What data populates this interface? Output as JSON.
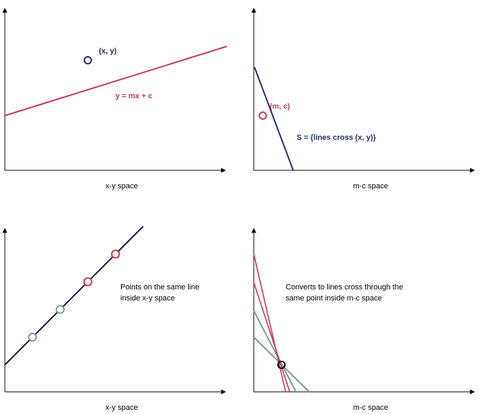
{
  "colors": {
    "axis": "#000000",
    "red": "#c8374f",
    "navy": "#1f2d5c",
    "dark_navy": "#14163a",
    "green": "#7a9a8f",
    "black": "#000000"
  },
  "panels": {
    "top_left": {
      "caption": "x-y space",
      "point_label": "(x, y)",
      "line_label": "y = mx + c"
    },
    "top_right": {
      "caption": "m-c space",
      "point_label": "(m, c)",
      "line_label": "S = {lines cross (x, y)}"
    },
    "bottom_left": {
      "caption": "x-y space",
      "note_line1": "Points on the same line",
      "note_line2": "inside x-y space"
    },
    "bottom_right": {
      "caption": "m-c space",
      "note_line1": "Converts to lines cross through the",
      "note_line2": "same point inside m-c space"
    }
  }
}
